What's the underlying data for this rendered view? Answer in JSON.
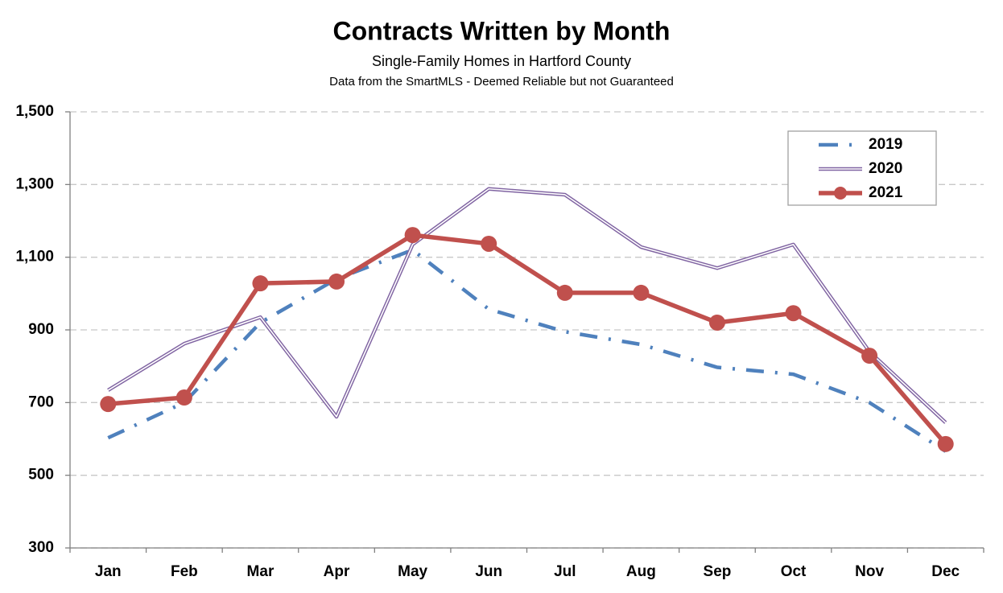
{
  "chart_data": {
    "type": "line",
    "title": "Contracts Written by Month",
    "subtitle": "Single-Family Homes in Hartford County",
    "note": "Data from the SmartMLS - Deemed Reliable  but not Guaranteed",
    "categories": [
      "Jan",
      "Feb",
      "Mar",
      "Apr",
      "May",
      "Jun",
      "Jul",
      "Aug",
      "Sep",
      "Oct",
      "Nov",
      "Dec"
    ],
    "series": [
      {
        "name": "2019",
        "color": "#4f81bd",
        "line_style": "dash-dot",
        "values": [
          603,
          700,
          920,
          1040,
          1120,
          957,
          895,
          860,
          797,
          778,
          700,
          566
        ]
      },
      {
        "name": "2020",
        "color": "#8064a2",
        "line_style": "double",
        "values": [
          734,
          862,
          935,
          661,
          1135,
          1288,
          1272,
          1128,
          1070,
          1135,
          840,
          645
        ]
      },
      {
        "name": "2021",
        "color": "#c0504d",
        "line_style": "solid-markers",
        "values": [
          696,
          714,
          1028,
          1033,
          1161,
          1137,
          1002,
          1002,
          920,
          946,
          829,
          586
        ]
      }
    ],
    "ylim": [
      300,
      1500
    ],
    "yticks": [
      300,
      500,
      700,
      900,
      {
        "value": 1100,
        "label": "1,100"
      },
      {
        "value": 1300,
        "label": "1,300"
      },
      {
        "value": 1500,
        "label": "1,500"
      }
    ],
    "grid": true,
    "legend": "top-right"
  }
}
